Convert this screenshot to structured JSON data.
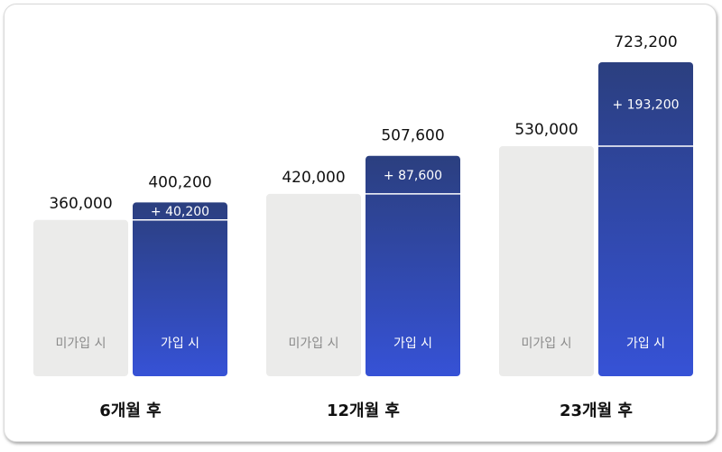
{
  "colors": {
    "gray_bar": "#ebebea",
    "blue_top": "#2b3f7f",
    "blue_bottom": "#3652d6",
    "divider": "#ffffff"
  },
  "chart_data": {
    "type": "bar",
    "categories": [
      "6개월 후",
      "12개월 후",
      "23개월 후"
    ],
    "series": [
      {
        "name": "미가입 시",
        "values": [
          360000,
          420000,
          530000
        ]
      },
      {
        "name": "가입 시",
        "values": [
          400200,
          507600,
          723200
        ]
      }
    ],
    "value_labels": {
      "미가입 시": [
        "360,000",
        "420,000",
        "530,000"
      ],
      "가입 시": [
        "400,200",
        "507,600",
        "723,200"
      ]
    },
    "differences": [
      "+ 40,200",
      "+ 87,600",
      "+ 193,200"
    ],
    "ylim": [
      0,
      723200
    ]
  }
}
